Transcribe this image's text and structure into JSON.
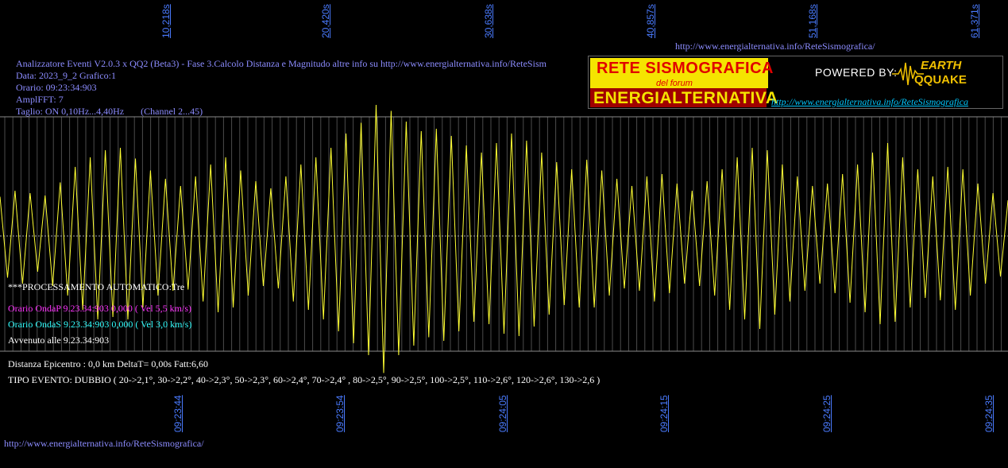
{
  "header": {
    "line1": "Analizzatore Eventi V2.0.3 x QQ2 (Beta3) - Fase 3.Calcolo Distanza e Magnitudo altre info su http://www.energialternativa.info/ReteSism",
    "line2": "Data: 2023_9_2 Grafico:1",
    "line3": "Orario: 09:23:34:903",
    "line4": "AmplFFT: 7",
    "line5": "Taglio: ON 0,10Hz...4,40Hz       (Channel 2...45)"
  },
  "top_url": "http://www.energialternativa.info/ReteSismografica/",
  "bottom_url": "http://www.energialternativa.info/ReteSismografica/",
  "logo": {
    "title1": "RETE SISMOGRAFICA",
    "subtitle": "del forum",
    "title2": "ENERGIALTERNATIVA",
    "powered": "POWERED BY:",
    "brand1": "EARTH",
    "brand2": "QQUAKE",
    "url": "http://www.energialternativa.info/ReteSismografica"
  },
  "processing": {
    "title": "***PROCESSAMENTO AUTOMATICO:Tre",
    "p_wave": "Orario OndaP 9.23.34:903  0,000 ( Vel 5,5 km/s)",
    "s_wave": "Orario OndaS 9.23.34:903  0,000 ( Vel 3,0 km/s)",
    "occurred": "Avvenuto alle 9.23.34:903"
  },
  "summary": {
    "distance": "Distanza Epicentro : 0,0 km DeltaT= 0,00s  Fatt:6,60",
    "event_type": "TIPO EVENTO: DUBBIO ( 20->2,1°, 30->2,2°, 40->2,3°, 50->2,3°, 60->2,4°, 70->2,4° , 80->2,5°, 90->2,5°, 100->2,5°, 110->2,6°, 120->2,6°, 130->2,6 )"
  },
  "colors": {
    "signal": "#ffff33",
    "grid": "#8a8a8a",
    "axis_label": "#4a7bff",
    "header": "#8c8cff",
    "p_wave": "#ff33ff",
    "s_wave": "#33ffff",
    "text": "#ffffff"
  },
  "chart_data": {
    "type": "line",
    "title": "",
    "xlabel": "",
    "ylabel": "",
    "top_ticks": [
      "10,218s",
      "20,420s",
      "30,638s",
      "40,857s",
      "51,168s",
      "61,371s"
    ],
    "bottom_ticks": [
      "09:23:44",
      "09:23:54",
      "09:24:05",
      "09:24:15",
      "09:24:25",
      "09:24:35"
    ],
    "series": [
      {
        "values": [
          0.33,
          -0.35,
          0.38,
          -0.4,
          0.36,
          -0.3,
          0.34,
          -0.42,
          0.45,
          -0.5,
          0.58,
          -0.62,
          0.66,
          -0.7,
          0.72,
          -0.68,
          0.74,
          -0.7,
          0.65,
          -0.6,
          0.55,
          -0.5,
          0.48,
          -0.46,
          0.42,
          -0.45,
          0.5,
          -0.55,
          0.6,
          -0.64,
          0.66,
          -0.6,
          0.55,
          -0.5,
          0.46,
          -0.42,
          0.4,
          -0.44,
          0.5,
          -0.55,
          0.6,
          -0.62,
          0.66,
          -0.7,
          0.74,
          -0.8,
          0.86,
          -0.9,
          0.95,
          -1.0,
          1.1,
          -1.15,
          1.05,
          -1.0,
          0.96,
          -0.92,
          0.88,
          -0.85,
          0.9,
          -0.88,
          0.84,
          -0.8,
          0.76,
          -0.72,
          0.7,
          -0.74,
          0.78,
          -0.82,
          0.86,
          -0.84,
          0.8,
          -0.76,
          0.7,
          -0.66,
          0.62,
          -0.58,
          0.56,
          -0.6,
          0.64,
          -0.6,
          0.55,
          -0.5,
          0.48,
          -0.44,
          0.42,
          -0.46,
          0.5,
          -0.55,
          0.52,
          -0.48,
          0.44,
          -0.4,
          0.38,
          -0.42,
          0.46,
          -0.5,
          0.56,
          -0.62,
          0.66,
          -0.7,
          0.74,
          -0.78,
          0.72,
          -0.66,
          0.6,
          -0.55,
          0.5,
          -0.46,
          0.42,
          -0.4,
          0.44,
          -0.48,
          0.52,
          -0.56,
          0.6,
          -0.64,
          0.7,
          -0.74,
          0.78,
          -0.72,
          0.66,
          -0.6,
          0.56,
          -0.52,
          0.5,
          -0.54,
          0.58,
          -0.62,
          0.56,
          -0.5,
          0.44,
          -0.4,
          0.36,
          -0.34,
          0.3
        ]
      }
    ]
  }
}
